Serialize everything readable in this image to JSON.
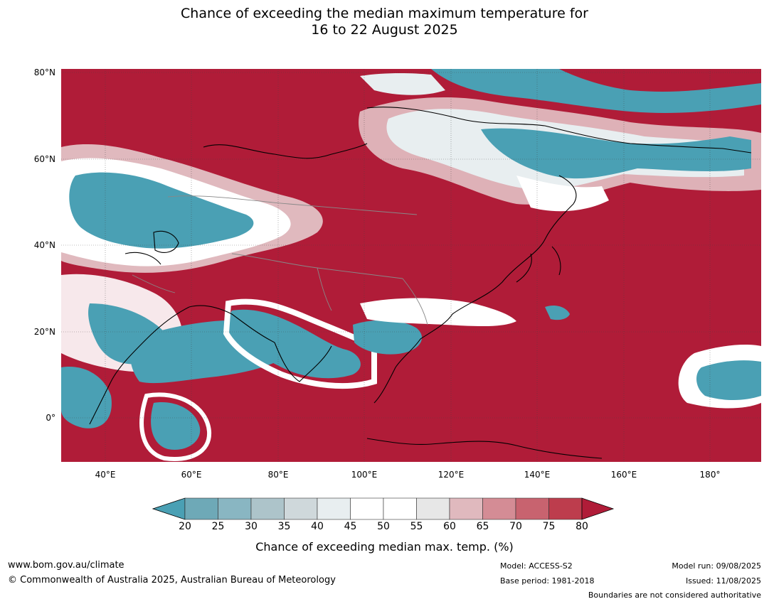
{
  "title_line1": "Chance of exceeding the median maximum temperature for",
  "title_line2": "16 to 22 August 2025",
  "lat_labels": [
    "80°N",
    "60°N",
    "40°N",
    "20°N",
    "0°"
  ],
  "lon_labels": [
    "40°E",
    "60°E",
    "80°E",
    "100°E",
    "120°E",
    "140°E",
    "160°E",
    "180°"
  ],
  "colorbar": {
    "ticks": [
      "20",
      "25",
      "30",
      "35",
      "40",
      "45",
      "50",
      "55",
      "60",
      "65",
      "70",
      "75",
      "80"
    ],
    "label": "Chance of exceeding median max. temp. (%)",
    "colors": [
      "#4aa0b4",
      "#6ea9b7",
      "#89b6c2",
      "#adc4ca",
      "#cfd8db",
      "#e8eef0",
      "#ffffff",
      "#ffffff",
      "#e7e7e7",
      "#e0b9be",
      "#d48c95",
      "#c8636f",
      "#bd3d4d",
      "#b01c38"
    ]
  },
  "colors": {
    "below": "#4aa0b4",
    "near": "#ffffff",
    "above": "#b01c38"
  },
  "footer": {
    "url": "www.bom.gov.au/climate",
    "copyright": "© Commonwealth of Australia 2025, Australian Bureau of Meteorology",
    "model": "Model: ACCESS-S2",
    "base_period": "Base period: 1981-2018",
    "model_run": "Model run: 09/08/2025",
    "issued": "Issued: 11/08/2025",
    "disclaimer": "Boundaries are not considered authoritative"
  }
}
